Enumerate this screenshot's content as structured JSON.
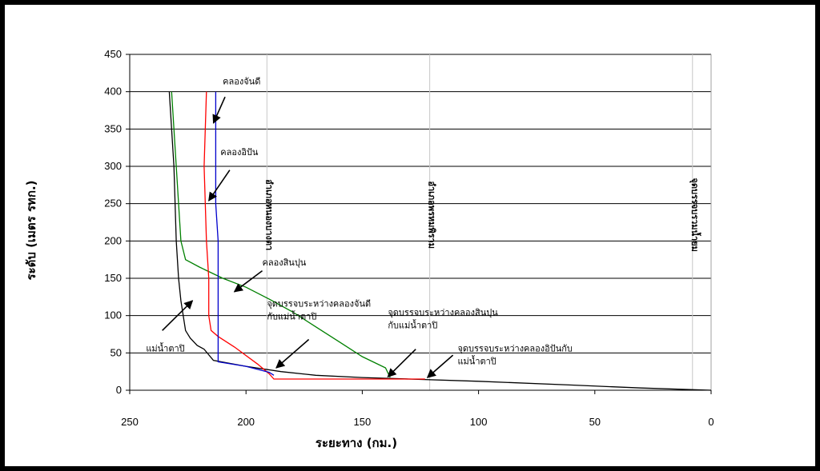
{
  "chart_data": {
    "type": "line",
    "xlabel": "ระยะทาง (กม.)",
    "ylabel": "ระดับ (เมตร รทก.)",
    "xlim": [
      250,
      0
    ],
    "ylim": [
      0,
      450
    ],
    "x_ticks": [
      250,
      200,
      150,
      100,
      50,
      0
    ],
    "y_ticks": [
      0,
      50,
      100,
      150,
      200,
      250,
      300,
      350,
      400,
      450
    ],
    "grid": "horizontal",
    "legend": "none",
    "series": [
      {
        "color": "#000000",
        "points": [
          [
            233,
            400
          ],
          [
            231,
            300
          ],
          [
            230,
            200
          ],
          [
            229,
            150
          ],
          [
            228,
            120
          ],
          [
            227,
            100
          ],
          [
            226,
            80
          ],
          [
            224,
            70
          ],
          [
            221,
            60
          ],
          [
            218,
            55
          ],
          [
            214,
            40
          ],
          [
            200,
            32
          ],
          [
            185,
            25
          ],
          [
            170,
            20
          ],
          [
            150,
            17
          ],
          [
            130,
            15
          ],
          [
            100,
            12
          ],
          [
            60,
            7
          ],
          [
            30,
            3
          ],
          [
            0,
            0
          ]
        ]
      },
      {
        "color": "#008000",
        "points": [
          [
            232,
            400
          ],
          [
            230,
            300
          ],
          [
            229,
            250
          ],
          [
            228,
            200
          ],
          [
            226,
            175
          ],
          [
            220,
            165
          ],
          [
            210,
            150
          ],
          [
            200,
            138
          ],
          [
            190,
            122
          ],
          [
            180,
            105
          ],
          [
            170,
            85
          ],
          [
            160,
            65
          ],
          [
            150,
            45
          ],
          [
            140,
            30
          ],
          [
            138,
            17
          ]
        ]
      },
      {
        "color": "#ff0000",
        "points": [
          [
            217,
            400
          ],
          [
            218,
            300
          ],
          [
            217,
            200
          ],
          [
            216,
            150
          ],
          [
            216,
            100
          ],
          [
            215,
            80
          ],
          [
            212,
            72
          ],
          [
            205,
            58
          ],
          [
            195,
            35
          ],
          [
            190,
            22
          ],
          [
            188,
            15
          ],
          [
            160,
            15
          ],
          [
            140,
            15
          ],
          [
            130,
            15
          ],
          [
            123,
            15
          ]
        ]
      },
      {
        "color": "#0000cc",
        "points": [
          [
            213,
            400
          ],
          [
            213,
            300
          ],
          [
            213,
            250
          ],
          [
            212,
            200
          ],
          [
            212,
            150
          ],
          [
            212,
            100
          ],
          [
            212,
            70
          ],
          [
            212,
            50
          ],
          [
            212,
            38
          ],
          [
            200,
            32
          ],
          [
            190,
            24
          ],
          [
            188,
            20
          ]
        ]
      }
    ],
    "vertical_markers": [
      {
        "x": 191,
        "label": "อำเภอหนองบางตา"
      },
      {
        "x": 121,
        "label": "อำเภอพรหมพิราม"
      },
      {
        "x": 8,
        "label": "จุดบรรจบรวมน้ำยม"
      }
    ],
    "annotations": [
      {
        "lines": [
          "คลองจันดี"
        ],
        "text_at": [
          210,
          410
        ],
        "arrow_from": [
          209,
          393
        ],
        "arrow_to": [
          214,
          358
        ]
      },
      {
        "lines": [
          "คลองอิปัน"
        ],
        "text_at": [
          211,
          315
        ],
        "arrow_from": [
          207,
          295
        ],
        "arrow_to": [
          216,
          254
        ]
      },
      {
        "lines": [
          "คลองสินปุน"
        ],
        "text_at": [
          193,
          167
        ],
        "arrow_from": [
          193,
          160
        ],
        "arrow_to": [
          205,
          132
        ]
      },
      {
        "lines": [
          "จุดบรรจบระหว่างคลองจันดี",
          "กับแม่น้ำตาปิ"
        ],
        "text_at": [
          191,
          112
        ],
        "arrow_from": [
          173,
          68
        ],
        "arrow_to": [
          187,
          30
        ]
      },
      {
        "lines": [
          "จุดบรรจบระหว่างคลองสินปุน",
          "กับแม่น้ำตาปิ"
        ],
        "text_at": [
          139,
          100
        ],
        "arrow_from": [
          127,
          55
        ],
        "arrow_to": [
          139,
          18
        ]
      },
      {
        "lines": [
          "จุดบรรจบระหว่างคลองอิปันกับ",
          "แม่น้ำตาปิ"
        ],
        "text_at": [
          109,
          52
        ],
        "arrow_from": [
          111,
          47
        ],
        "arrow_to": [
          122,
          17
        ]
      },
      {
        "lines": [
          "แม่น้ำตาปิ"
        ],
        "text_at": [
          243,
          52
        ],
        "arrow_from": [
          236,
          80
        ],
        "arrow_to": [
          223,
          120
        ]
      }
    ]
  }
}
